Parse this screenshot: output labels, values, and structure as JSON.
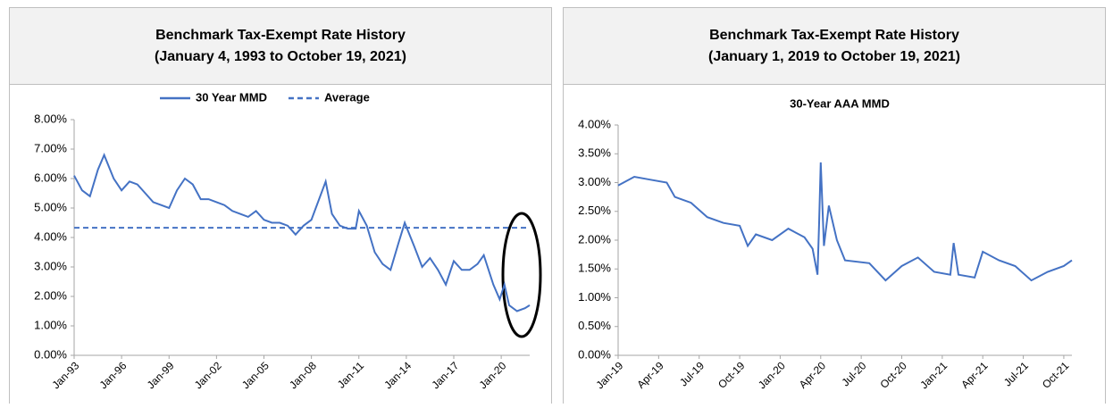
{
  "chart_data": [
    {
      "type": "line",
      "title": "Benchmark Tax-Exempt Rate History",
      "subtitle": "(January 4, 1993 to October 19, 2021)",
      "xlim": [
        1993,
        2021.8
      ],
      "xticks": [
        {
          "value": 1993,
          "label": "Jan-93"
        },
        {
          "value": 1996,
          "label": "Jan-96"
        },
        {
          "value": 1999,
          "label": "Jan-99"
        },
        {
          "value": 2002,
          "label": "Jan-02"
        },
        {
          "value": 2005,
          "label": "Jan-05"
        },
        {
          "value": 2008,
          "label": "Jan-08"
        },
        {
          "value": 2011,
          "label": "Jan-11"
        },
        {
          "value": 2014,
          "label": "Jan-14"
        },
        {
          "value": 2017,
          "label": "Jan-17"
        },
        {
          "value": 2020,
          "label": "Jan-20"
        }
      ],
      "ylim": [
        0,
        8
      ],
      "yticks": [
        {
          "value": 0,
          "label": "0.00%"
        },
        {
          "value": 1,
          "label": "1.00%"
        },
        {
          "value": 2,
          "label": "2.00%"
        },
        {
          "value": 3,
          "label": "3.00%"
        },
        {
          "value": 4,
          "label": "4.00%"
        },
        {
          "value": 5,
          "label": "5.00%"
        },
        {
          "value": 6,
          "label": "6.00%"
        },
        {
          "value": 7,
          "label": "7.00%"
        },
        {
          "value": 8,
          "label": "8.00%"
        }
      ],
      "legend": "top",
      "series": [
        {
          "name": "30 Year MMD",
          "color": "#4472c4",
          "dashed": false,
          "x": [
            1993.0,
            1993.5,
            1994.0,
            1994.5,
            1994.9,
            1995.5,
            1996.0,
            1996.5,
            1997.0,
            1997.5,
            1998.0,
            1998.5,
            1999.0,
            1999.5,
            2000.0,
            2000.5,
            2001.0,
            2001.5,
            2002.0,
            2002.5,
            2003.0,
            2003.5,
            2004.0,
            2004.5,
            2005.0,
            2005.5,
            2006.0,
            2006.5,
            2007.0,
            2007.5,
            2008.0,
            2008.9,
            2009.3,
            2009.8,
            2010.3,
            2010.8,
            2011.0,
            2011.5,
            2012.0,
            2012.5,
            2013.0,
            2013.5,
            2013.9,
            2014.5,
            2015.0,
            2015.5,
            2016.0,
            2016.5,
            2017.0,
            2017.5,
            2018.0,
            2018.5,
            2018.9,
            2019.5,
            2019.9,
            2020.2,
            2020.5,
            2021.0,
            2021.5,
            2021.8
          ],
          "values": [
            6.1,
            5.6,
            5.4,
            6.3,
            6.8,
            6.0,
            5.6,
            5.9,
            5.8,
            5.5,
            5.2,
            5.1,
            5.0,
            5.6,
            6.0,
            5.8,
            5.3,
            5.3,
            5.2,
            5.1,
            4.9,
            4.8,
            4.7,
            4.9,
            4.6,
            4.5,
            4.5,
            4.4,
            4.1,
            4.4,
            4.6,
            5.9,
            4.8,
            4.4,
            4.3,
            4.3,
            4.9,
            4.4,
            3.5,
            3.1,
            2.9,
            3.8,
            4.5,
            3.7,
            3.0,
            3.3,
            2.9,
            2.4,
            3.2,
            2.9,
            2.9,
            3.1,
            3.4,
            2.4,
            1.9,
            2.4,
            1.7,
            1.5,
            1.6,
            1.7
          ]
        },
        {
          "name": "Average",
          "color": "#4472c4",
          "dashed": true,
          "x": [
            1993,
            2021.8
          ],
          "values": [
            4.33,
            4.33
          ]
        }
      ]
    },
    {
      "type": "line",
      "title": "Benchmark Tax-Exempt Rate History",
      "subtitle": "(January 1, 2019 to October 19, 2021)",
      "inner_title": "30-Year AAA MMD",
      "xlim": [
        2019,
        2021.8
      ],
      "xticks": [
        {
          "value": 2019,
          "label": "Jan-19"
        },
        {
          "value": 2019.25,
          "label": "Apr-19"
        },
        {
          "value": 2019.5,
          "label": "Jul-19"
        },
        {
          "value": 2019.75,
          "label": "Oct-19"
        },
        {
          "value": 2020,
          "label": "Jan-20"
        },
        {
          "value": 2020.25,
          "label": "Apr-20"
        },
        {
          "value": 2020.5,
          "label": "Jul-20"
        },
        {
          "value": 2020.75,
          "label": "Oct-20"
        },
        {
          "value": 2021,
          "label": "Jan-21"
        },
        {
          "value": 2021.25,
          "label": "Apr-21"
        },
        {
          "value": 2021.5,
          "label": "Jul-21"
        },
        {
          "value": 2021.75,
          "label": "Oct-21"
        }
      ],
      "ylim": [
        0,
        4
      ],
      "yticks": [
        {
          "value": 0,
          "label": "0.00%"
        },
        {
          "value": 0.5,
          "label": "0.50%"
        },
        {
          "value": 1,
          "label": "1.00%"
        },
        {
          "value": 1.5,
          "label": "1.50%"
        },
        {
          "value": 2,
          "label": "2.00%"
        },
        {
          "value": 2.5,
          "label": "2.50%"
        },
        {
          "value": 3,
          "label": "3.00%"
        },
        {
          "value": 3.5,
          "label": "3.50%"
        },
        {
          "value": 4,
          "label": "4.00%"
        }
      ],
      "series": [
        {
          "color": "#4472c4",
          "dashed": false,
          "x": [
            2019.0,
            2019.1,
            2019.2,
            2019.3,
            2019.35,
            2019.45,
            2019.55,
            2019.65,
            2019.75,
            2019.8,
            2019.85,
            2019.95,
            2020.05,
            2020.15,
            2020.2,
            2020.23,
            2020.24,
            2020.25,
            2020.27,
            2020.3,
            2020.35,
            2020.4,
            2020.55,
            2020.65,
            2020.75,
            2020.85,
            2020.95,
            2021.05,
            2021.07,
            2021.1,
            2021.2,
            2021.25,
            2021.35,
            2021.45,
            2021.55,
            2021.65,
            2021.75,
            2021.8
          ],
          "values": [
            2.95,
            3.1,
            3.05,
            3.0,
            2.75,
            2.65,
            2.4,
            2.3,
            2.25,
            1.9,
            2.1,
            2.0,
            2.2,
            2.05,
            1.85,
            1.4,
            2.3,
            3.35,
            1.9,
            2.6,
            2.0,
            1.65,
            1.6,
            1.3,
            1.55,
            1.7,
            1.45,
            1.4,
            1.95,
            1.4,
            1.35,
            1.8,
            1.65,
            1.55,
            1.3,
            1.45,
            1.55,
            1.65
          ]
        }
      ]
    }
  ]
}
